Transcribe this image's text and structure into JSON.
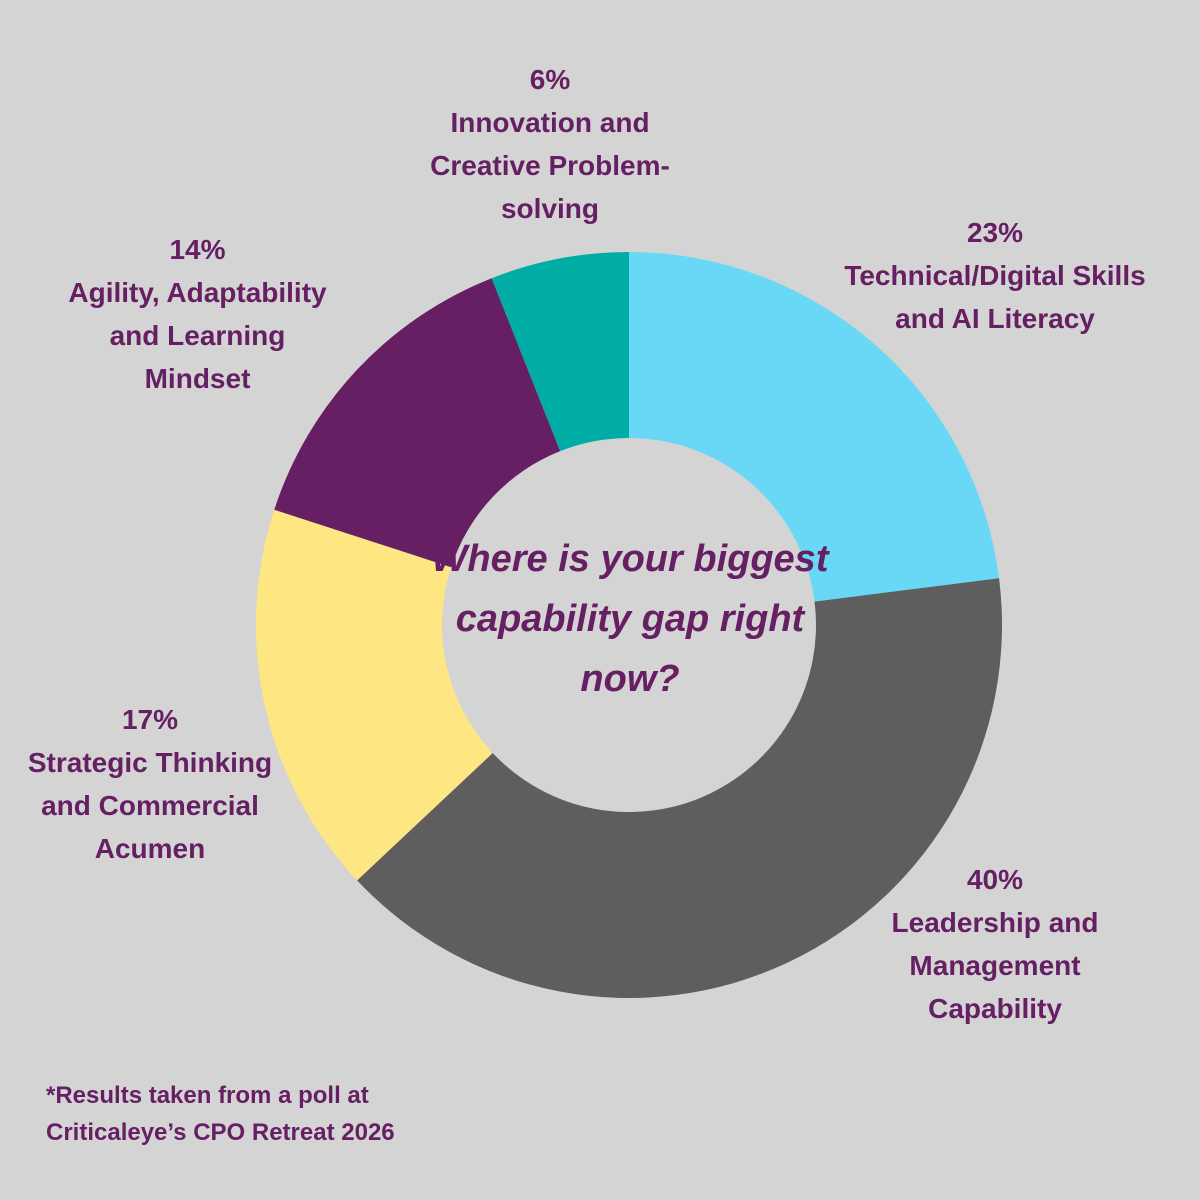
{
  "chart_data": {
    "type": "pie",
    "title": "Where is your biggest capability gap right now?",
    "categories": [
      "Technical/Digital Skills and AI Literacy",
      "Leadership and Management Capability",
      "Strategic Thinking and Commercial Acumen",
      "Agility, Adaptability and Learning Mindset",
      "Innovation and Creative Problem-solving"
    ],
    "values": [
      23,
      40,
      17,
      14,
      6
    ],
    "unit": "%",
    "colors": [
      "#69d8f7",
      "#5e5e5e",
      "#fee783",
      "#651f62",
      "#00ada4"
    ]
  },
  "labels": [
    {
      "pct": "23%",
      "name": "Technical/Digital Skills\nand AI Literacy"
    },
    {
      "pct": "40%",
      "name": "Leadership and\nManagement\nCapability"
    },
    {
      "pct": "17%",
      "name": "Strategic Thinking\nand Commercial\nAcumen"
    },
    {
      "pct": "14%",
      "name": "Agility, Adaptability\nand Learning\nMindset"
    },
    {
      "pct": "6%",
      "name": "Innovation and\nCreative Problem-\nsolving"
    }
  ],
  "center_question": "Where is your biggest capability gap right now?",
  "footnote": "*Results taken from a poll at\nCriticaleye’s CPO Retreat 2026"
}
